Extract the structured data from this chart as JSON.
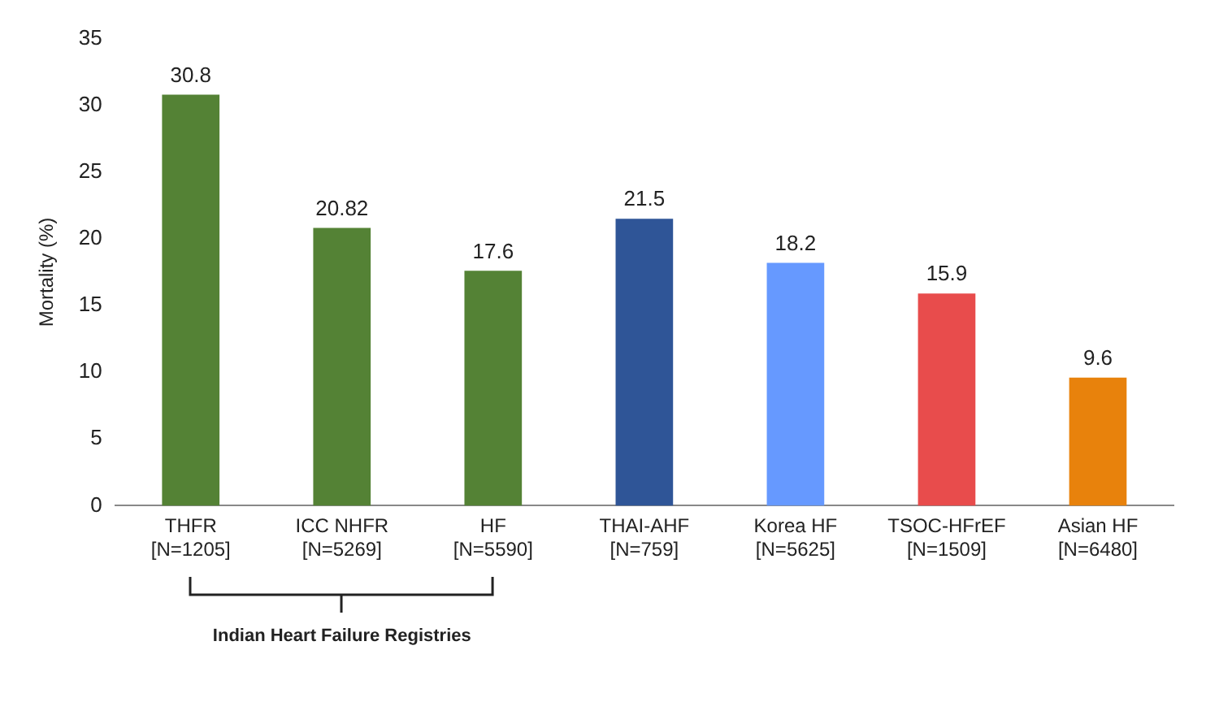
{
  "chart_data": {
    "type": "bar",
    "ylabel": "Mortality (%)",
    "categories": [
      "THFR\n[N=1205]",
      "ICC NHFR\n[N=5269]",
      "HF\n[N=5590]",
      "THAI-AHF\n[N=759]",
      "Korea HF\n[N=5625]",
      "TSOC-HFrEF\n[N=1509]",
      "Asian HF\n[N=6480]"
    ],
    "values": [
      30.8,
      20.82,
      17.6,
      21.5,
      18.2,
      15.9,
      9.6
    ],
    "colors": [
      "#548235",
      "#548235",
      "#548235",
      "#2f5597",
      "#6699ff",
      "#e84c4c",
      "#e8820c"
    ],
    "ylim": [
      0,
      35
    ],
    "yticks": [
      0,
      5,
      10,
      15,
      20,
      25,
      30,
      35
    ],
    "grid": false,
    "legend": false,
    "data_labels": true,
    "annotations": [
      "Indian Heart Failure Registries"
    ]
  }
}
